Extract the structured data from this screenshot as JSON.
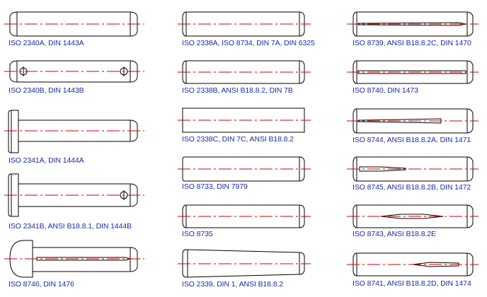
{
  "labels": {
    "c1": [
      "ISO 2340A, DIN 1443A",
      "ISO 2340B, DIN 1443B",
      "ISO 2341A, DIN 1444A",
      "ISO 2341B, ANSI B18.8.1, DIN 1444B",
      "ISO 8746, DIN 1476"
    ],
    "c2": [
      "ISO 2338A, ISO 8734, DIN 7A, DIN 6325",
      "ISO 2338B, ANSI B18.8.2, DIN 7B",
      "ISO 2338C, DIN 7C, ANSI B18.8.2",
      "ISO 8733, DIN 7979",
      "ISO 8735",
      "ISO 2339, DIN 1, ANSI B18.8.2"
    ],
    "c3": [
      "ISO 8739, ANSI B18.8.2C, DIN 1470",
      "ISO 8740, DIN 1473",
      "ISO 8744, ANSI B18.8.2A, DIN 1471",
      "ISO 8745, ANSI B18.8.2B, DIN 1472",
      "ISO 8743, ANSI B18.8.2E",
      "ISO 8741, ANSI B18.8.2D, DIN 1474"
    ]
  },
  "colors": {
    "outline": "#000000",
    "centerline": "#cc0000",
    "label": "#1a2aa8"
  }
}
